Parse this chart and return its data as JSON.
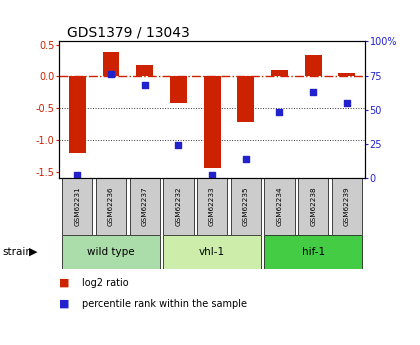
{
  "title": "GDS1379 / 13043",
  "samples": [
    "GSM62231",
    "GSM62236",
    "GSM62237",
    "GSM62232",
    "GSM62233",
    "GSM62235",
    "GSM62234",
    "GSM62238",
    "GSM62239"
  ],
  "log2_ratio": [
    -1.2,
    0.38,
    0.18,
    -0.42,
    -1.45,
    -0.72,
    0.1,
    0.33,
    0.05
  ],
  "percentile_rank": [
    2,
    76,
    68,
    24,
    2,
    14,
    48,
    63,
    55
  ],
  "groups": [
    {
      "label": "wild type",
      "indices": [
        0,
        1,
        2
      ],
      "color": "#aaddaa"
    },
    {
      "label": "vhl-1",
      "indices": [
        3,
        4,
        5
      ],
      "color": "#cceeaa"
    },
    {
      "label": "hif-1",
      "indices": [
        6,
        7,
        8
      ],
      "color": "#44cc44"
    }
  ],
  "ylim_left": [
    -1.6,
    0.55
  ],
  "ylim_right": [
    0,
    100
  ],
  "left_ticks": [
    0.5,
    0.0,
    -0.5,
    -1.0,
    -1.5
  ],
  "right_ticks": [
    100,
    75,
    50,
    25,
    0
  ],
  "bar_color": "#cc2200",
  "dot_color": "#2222cc",
  "ref_line_color": "#cc2200",
  "grid_line_color": "#333333",
  "bg_color": "#ffffff",
  "sample_bg": "#cccccc",
  "legend_bar_label": "log2 ratio",
  "legend_dot_label": "percentile rank within the sample",
  "strain_label": "strain",
  "bar_width": 0.5
}
